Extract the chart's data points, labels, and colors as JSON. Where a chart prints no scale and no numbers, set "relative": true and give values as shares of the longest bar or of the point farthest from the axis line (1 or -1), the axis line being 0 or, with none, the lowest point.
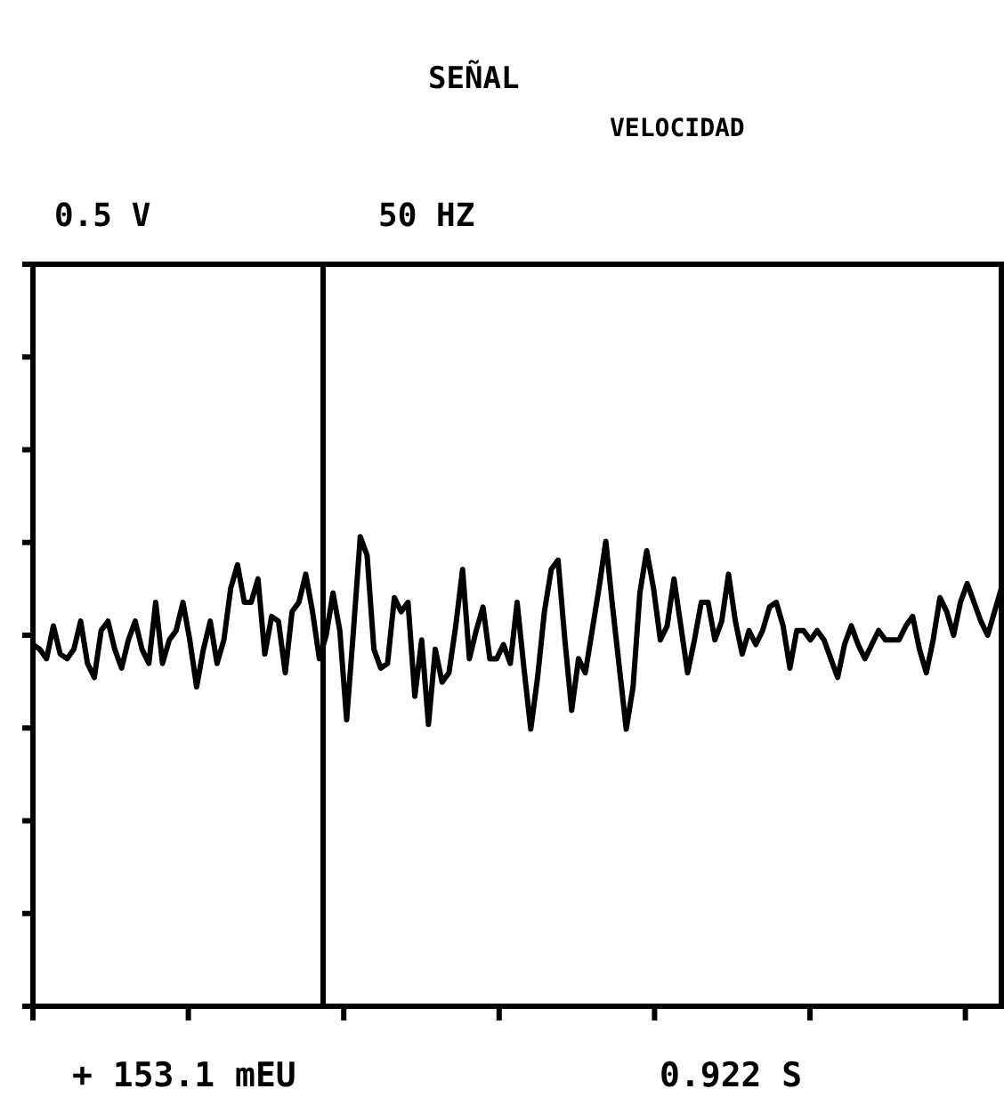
{
  "chart_data": {
    "type": "line",
    "title": "SEÑAL",
    "subtitle": "VELOCIDAD",
    "annotations": [
      "0.5 V",
      "50 HZ",
      "+ 153.1 mEU",
      "0.922 S"
    ],
    "relative": true,
    "color": "#000000",
    "categories": [
      null,
      null,
      null,
      null,
      null,
      null,
      null,
      null,
      null,
      null,
      null,
      null,
      null,
      null,
      null,
      null,
      null,
      null,
      null,
      null,
      null,
      null,
      null,
      null,
      null,
      null,
      null,
      null,
      null,
      null,
      null,
      null,
      null,
      null,
      null,
      null,
      null,
      null,
      null,
      null,
      null,
      null,
      null,
      null,
      null,
      null,
      null,
      null,
      null,
      null,
      null,
      null,
      null,
      null,
      null,
      null,
      null,
      null,
      null,
      null,
      null,
      null,
      null,
      null,
      null,
      null,
      null,
      null,
      null,
      null,
      null,
      null,
      null,
      null,
      null,
      null,
      null,
      null,
      null,
      null,
      null,
      null,
      null,
      null,
      null,
      null,
      null,
      null,
      null,
      null,
      null,
      null,
      null,
      null,
      null,
      null,
      null,
      null,
      null,
      null,
      null,
      null,
      null,
      null,
      null,
      null,
      null,
      null,
      null,
      null,
      null,
      null,
      null,
      null,
      null,
      null,
      null,
      null,
      null,
      null,
      null,
      null,
      null,
      null,
      null,
      null,
      null,
      null,
      null,
      null,
      null,
      null,
      null,
      null,
      null,
      null,
      null,
      null,
      null,
      null,
      null,
      null,
      null
    ],
    "values": [
      0.77,
      0.76,
      0.74,
      0.81,
      0.75,
      0.74,
      0.76,
      0.82,
      0.73,
      0.7,
      0.8,
      0.82,
      0.76,
      0.72,
      0.78,
      0.82,
      0.76,
      0.73,
      0.86,
      0.73,
      0.78,
      0.8,
      0.86,
      0.78,
      0.68,
      0.76,
      0.82,
      0.73,
      0.78,
      0.89,
      0.94,
      0.86,
      0.86,
      0.91,
      0.75,
      0.83,
      0.82,
      0.71,
      0.84,
      0.86,
      0.92,
      0.84,
      0.74,
      0.79,
      0.88,
      0.8,
      0.61,
      0.8,
      1,
      0.96,
      0.76,
      0.72,
      0.73,
      0.87,
      0.84,
      0.86,
      0.66,
      0.78,
      0.6,
      0.76,
      0.69,
      0.71,
      0.81,
      0.93,
      0.74,
      0.8,
      0.85,
      0.74,
      0.74,
      0.77,
      0.73,
      0.86,
      0.72,
      0.59,
      0.7,
      0.84,
      0.93,
      0.95,
      0.78,
      0.63,
      0.74,
      0.71,
      0.8,
      0.89,
      0.99,
      0.85,
      0.72,
      0.59,
      0.68,
      0.88,
      0.97,
      0.89,
      0.78,
      0.81,
      0.91,
      0.81,
      0.71,
      0.78,
      0.86,
      0.86,
      0.78,
      0.82,
      0.92,
      0.82,
      0.75,
      0.8,
      0.77,
      0.8,
      0.85,
      0.86,
      0.81,
      0.72,
      0.8,
      0.8,
      0.78,
      0.8,
      0.78,
      0.74,
      0.7,
      0.77,
      0.81,
      0.77,
      0.74,
      0.77,
      0.8,
      0.78,
      0.78,
      0.78,
      0.81,
      0.83,
      0.76,
      0.71,
      0.78,
      0.87,
      0.84,
      0.79,
      0.86,
      0.9,
      0.86,
      0.82,
      0.79,
      0.84,
      0.89
    ]
  }
}
